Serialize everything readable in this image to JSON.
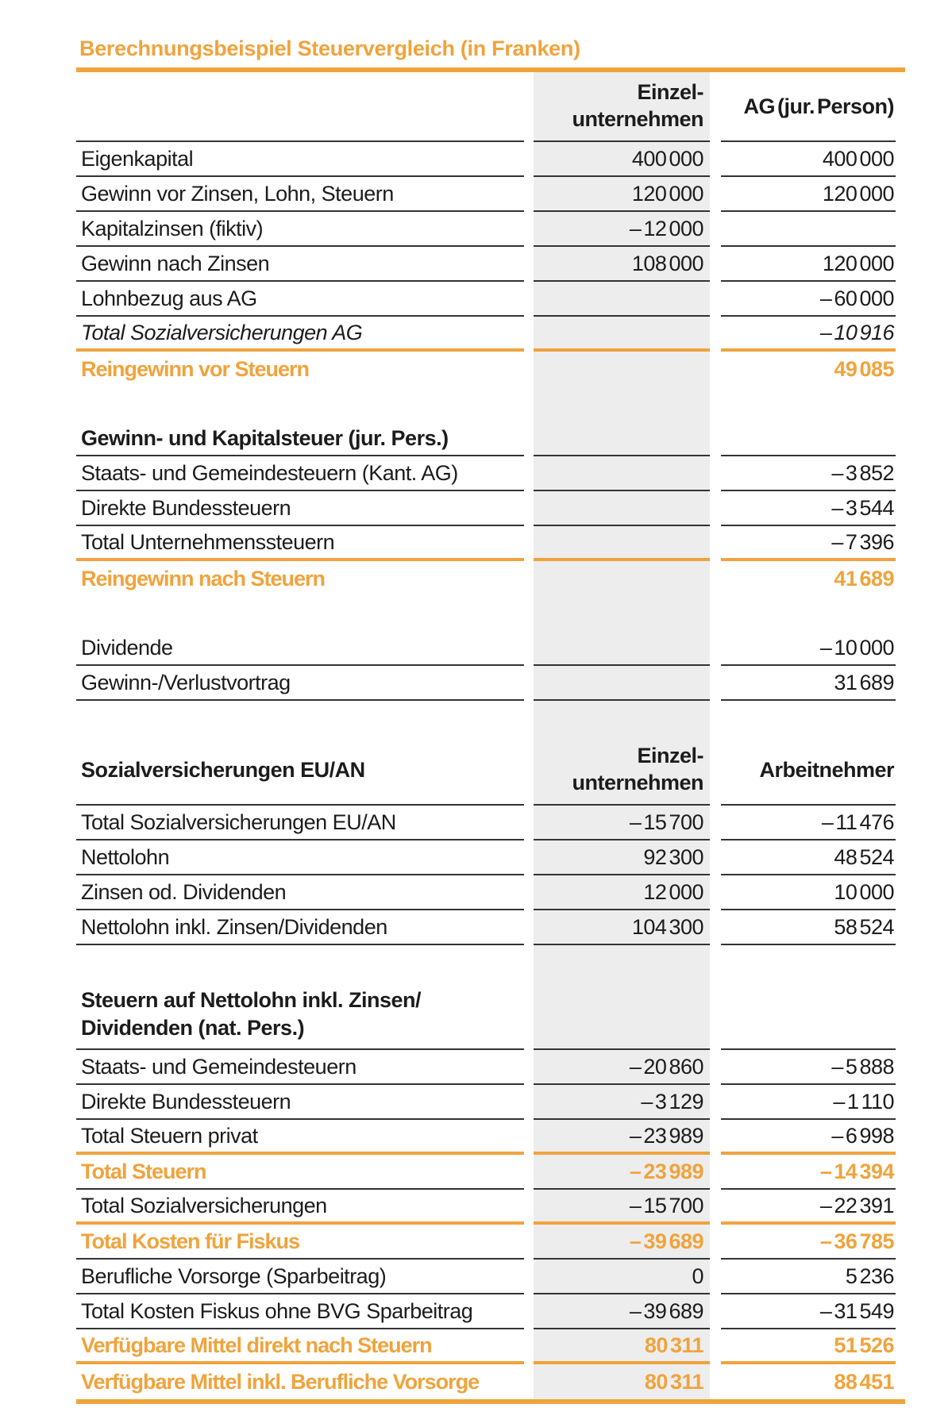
{
  "title": "Berechnungsbeispiel Steuervergleich (in Franken)",
  "colors": {
    "accent": "#F0A33C",
    "column_background": "#EDEDED",
    "separator": "#333333",
    "text": "#1C1C1C"
  },
  "table": {
    "sections": [
      {
        "header": {
          "label": "",
          "col1_lines": [
            "Einzel-",
            "unternehmen"
          ],
          "col2": "AG (jur. Person)",
          "two_line": true,
          "sep": "dark"
        },
        "rows": [
          {
            "label": "Eigenkapital",
            "v1": "400 000",
            "v2": "400 000",
            "sep": "dark"
          },
          {
            "label": "Gewinn vor Zinsen, Lohn, Steuern",
            "v1": "120 000",
            "v2": "120 000",
            "sep": "dark"
          },
          {
            "label": "Kapitalzinsen (fiktiv)",
            "v1": "– 12 000",
            "v2": "",
            "sep": "dark"
          },
          {
            "label": "Gewinn nach Zinsen",
            "v1": "108 000",
            "v2": "120 000",
            "sep": "dark"
          },
          {
            "label": "Lohnbezug aus AG",
            "v1": "",
            "v2": "– 60 000",
            "sep": "dark"
          },
          {
            "label": "Total Sozialversicherungen AG",
            "v1": "",
            "v2": "– 10 916",
            "italic": true,
            "sep": "accent"
          },
          {
            "label": "Reingewinn vor Steuern",
            "v1": "",
            "v2": "49 085",
            "accent": true,
            "sep": "none"
          }
        ]
      },
      {
        "header": {
          "label": "Gewinn- und Kapitalsteuer (jur. Pers.)",
          "sep": "dark"
        },
        "rows": [
          {
            "label": "Staats- und Gemeindesteuern (Kant. AG)",
            "v1": "",
            "v2": "– 3 852",
            "sep": "dark"
          },
          {
            "label": "Direkte Bundessteuern",
            "v1": "",
            "v2": "– 3 544",
            "sep": "dark"
          },
          {
            "label": "Total Unternehmenssteuern",
            "v1": "",
            "v2": "– 7 396",
            "sep": "accent"
          },
          {
            "label": "Reingewinn nach Steuern",
            "v1": "",
            "v2": "41 689",
            "accent": true,
            "sep": "none"
          }
        ]
      },
      {
        "header": null,
        "rows": [
          {
            "label": "Dividende",
            "v1": "",
            "v2": "– 10 000",
            "sep": "dark"
          },
          {
            "label": "Gewinn-/Verlustvortrag",
            "v1": "",
            "v2": "31 689",
            "sep": "dark"
          }
        ]
      },
      {
        "header": {
          "label": "Sozialversicherungen EU/AN",
          "col1_lines": [
            "Einzel-",
            "unternehmen"
          ],
          "col2": "Arbeitnehmer",
          "two_line": true,
          "sep": "dark"
        },
        "rows": [
          {
            "label": "Total Sozialversicherungen EU/AN",
            "v1": "– 15 700",
            "v2": "– 11 476",
            "sep": "dark"
          },
          {
            "label": "Nettolohn",
            "v1": "92 300",
            "v2": "48 524",
            "sep": "dark"
          },
          {
            "label": "Zinsen od. Dividenden",
            "v1": "12 000",
            "v2": "10 000",
            "sep": "dark"
          },
          {
            "label": "Nettolohn inkl. Zinsen/Dividenden",
            "v1": "104 300",
            "v2": "58 524",
            "sep": "dark"
          }
        ]
      },
      {
        "header": {
          "label_lines": [
            "Steuern auf Nettolohn inkl. Zinsen/",
            "Dividenden (nat. Pers.)"
          ],
          "two_line": true,
          "sep": "dark"
        },
        "rows": [
          {
            "label": "Staats- und Gemeindesteuern",
            "v1": "– 20 860",
            "v2": "– 5 888",
            "sep": "dark"
          },
          {
            "label": "Direkte Bundessteuern",
            "v1": "– 3 129",
            "v2": "– 1 110",
            "sep": "dark"
          },
          {
            "label": "Total Steuern privat",
            "v1": "– 23 989",
            "v2": "– 6 998",
            "sep": "accent"
          },
          {
            "label": "Total Steuern",
            "v1": "– 23 989",
            "v2": "– 14 394",
            "accent": true,
            "sep": "dark"
          },
          {
            "label": "Total Sozialversicherungen",
            "v1": "– 15 700",
            "v2": "– 22 391",
            "sep": "accent"
          },
          {
            "label": "Total Kosten für Fiskus",
            "v1": "– 39 689",
            "v2": "– 36 785",
            "accent": true,
            "sep": "dark"
          },
          {
            "label": "Berufliche Vorsorge (Sparbeitrag)",
            "v1": "0",
            "v2": "5 236",
            "sep": "dark"
          },
          {
            "label": "Total Kosten Fiskus ohne BVG Sparbeitrag",
            "v1": "– 39 689",
            "v2": "– 31 549",
            "sep": "dark"
          },
          {
            "label": "Verfügbare Mittel direkt nach Steuern",
            "v1": "80 311",
            "v2": "51 526",
            "accent": true,
            "sep": "accent"
          },
          {
            "label": "Verfügbare Mittel inkl. Berufliche Vorsorge",
            "v1": "80 311",
            "v2": "88 451",
            "accent": true,
            "sep": "none"
          }
        ]
      }
    ]
  }
}
